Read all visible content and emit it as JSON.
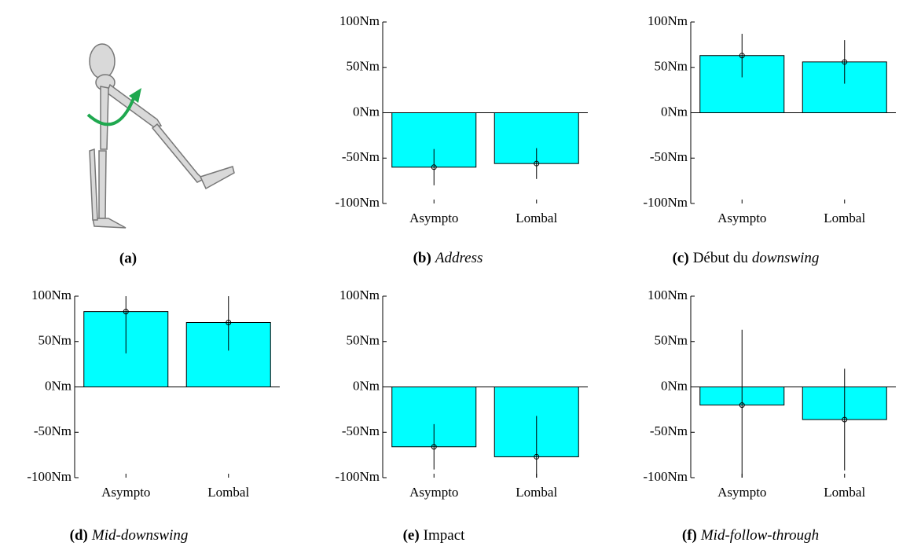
{
  "image_panel": {
    "caption": "(a)"
  },
  "chart_data": [
    {
      "type": "bar",
      "caption": [
        {
          "text": "(b)",
          "bold": true
        },
        {
          "text": "Address",
          "italic": true
        }
      ],
      "categories": [
        "Asympto",
        "Lombal"
      ],
      "values": [
        -60,
        -56
      ],
      "errors": [
        20,
        17
      ],
      "color": "#00ffff",
      "ylim": [
        -100,
        100
      ],
      "yticks": [
        {
          "value": -100,
          "label": "-100Nm"
        },
        {
          "value": -50,
          "label": "-50Nm"
        },
        {
          "value": 0,
          "label": "0Nm"
        },
        {
          "value": 50,
          "label": "50Nm"
        },
        {
          "value": 100,
          "label": "100Nm"
        }
      ]
    },
    {
      "type": "bar",
      "caption": [
        {
          "text": "(c)",
          "bold": true
        },
        {
          "text": "Début du"
        },
        {
          "text": "downswing",
          "italic": true
        }
      ],
      "categories": [
        "Asympto",
        "Lombal"
      ],
      "values": [
        63,
        56
      ],
      "errors": [
        24,
        24
      ],
      "color": "#00ffff",
      "ylim": [
        -100,
        100
      ],
      "yticks": [
        {
          "value": -100,
          "label": "-100Nm"
        },
        {
          "value": -50,
          "label": "-50Nm"
        },
        {
          "value": 0,
          "label": "0Nm"
        },
        {
          "value": 50,
          "label": "50Nm"
        },
        {
          "value": 100,
          "label": "100Nm"
        }
      ]
    },
    {
      "type": "bar",
      "caption": [
        {
          "text": "(d)",
          "bold": true
        },
        {
          "text": "Mid-downswing",
          "italic": true
        }
      ],
      "categories": [
        "Asympto",
        "Lombal"
      ],
      "values": [
        83,
        71
      ],
      "errors": [
        46,
        31
      ],
      "color": "#00ffff",
      "ylim": [
        -100,
        100
      ],
      "yticks": [
        {
          "value": -100,
          "label": "-100Nm"
        },
        {
          "value": -50,
          "label": "-50Nm"
        },
        {
          "value": 0,
          "label": "0Nm"
        },
        {
          "value": 50,
          "label": "50Nm"
        },
        {
          "value": 100,
          "label": "100Nm"
        }
      ]
    },
    {
      "type": "bar",
      "caption": [
        {
          "text": "(e)",
          "bold": true
        },
        {
          "text": "Impact"
        }
      ],
      "categories": [
        "Asympto",
        "Lombal"
      ],
      "values": [
        -66,
        -77
      ],
      "errors": [
        25,
        45
      ],
      "color": "#00ffff",
      "ylim": [
        -100,
        100
      ],
      "yticks": [
        {
          "value": -100,
          "label": "-100Nm"
        },
        {
          "value": -50,
          "label": "-50Nm"
        },
        {
          "value": 0,
          "label": "0Nm"
        },
        {
          "value": 50,
          "label": "50Nm"
        },
        {
          "value": 100,
          "label": "100Nm"
        }
      ]
    },
    {
      "type": "bar",
      "caption": [
        {
          "text": "(f)",
          "bold": true
        },
        {
          "text": "Mid-follow-through",
          "italic": true
        }
      ],
      "categories": [
        "Asympto",
        "Lombal"
      ],
      "values": [
        -20,
        -36
      ],
      "errors": [
        83,
        56
      ],
      "color": "#00ffff",
      "ylim": [
        -100,
        100
      ],
      "yticks": [
        {
          "value": -100,
          "label": "-100Nm"
        },
        {
          "value": -50,
          "label": "-50Nm"
        },
        {
          "value": 0,
          "label": "0Nm"
        },
        {
          "value": 50,
          "label": "50Nm"
        },
        {
          "value": 100,
          "label": "100Nm"
        }
      ]
    }
  ]
}
